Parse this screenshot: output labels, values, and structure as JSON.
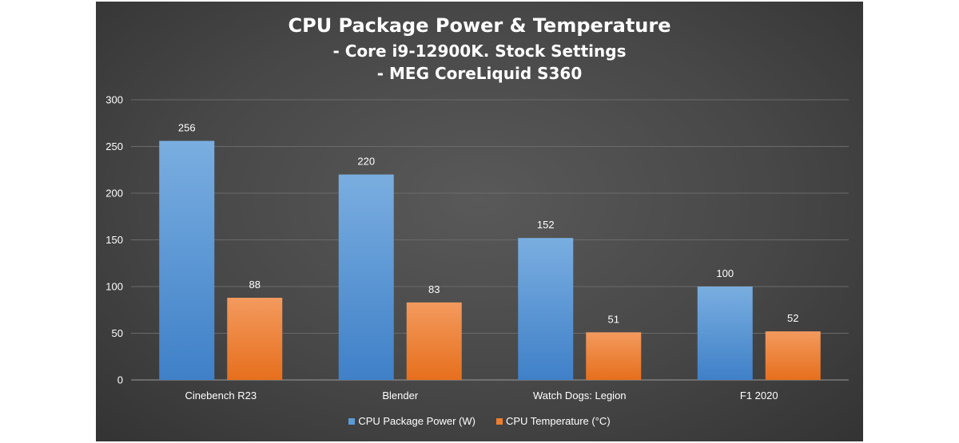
{
  "chart_data": {
    "type": "bar",
    "title": "CPU Package Power & Temperature",
    "subtitle_lines": [
      "- Core i9-12900K. Stock Settings",
      "- MEG CoreLiquid S360"
    ],
    "categories": [
      "Cinebench R23",
      "Blender",
      "Watch Dogs: Legion",
      "F1 2020"
    ],
    "series": [
      {
        "name": "CPU Package Power (W)",
        "values": [
          256,
          220,
          152,
          100
        ],
        "color": "#5b9bd5"
      },
      {
        "name": "CPU Temperature (°C)",
        "values": [
          88,
          83,
          51,
          52
        ],
        "color": "#ed7d31"
      }
    ],
    "ylim": [
      0,
      300
    ],
    "yticks": [
      0,
      50,
      100,
      150,
      200,
      250,
      300
    ],
    "grid": true,
    "legend_position": "bottom",
    "xlabel": "",
    "ylabel": ""
  }
}
